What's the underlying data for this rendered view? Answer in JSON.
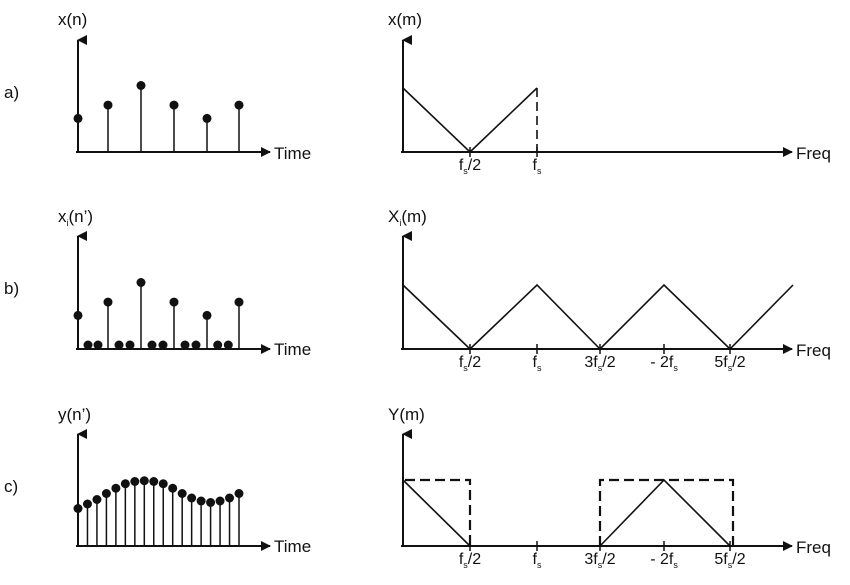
{
  "rows": [
    {
      "label": "a)",
      "time_title": "x(n)",
      "freq_title": "x(m)",
      "samples": [
        0.48,
        0.67,
        0.95,
        0.67,
        0.48,
        0.67
      ],
      "zero_samples": [],
      "freq_ticks": [
        {
          "main": "f",
          "sub": "s",
          "rest": "/2"
        },
        {
          "main": "f",
          "sub": "s",
          "rest": ""
        }
      ],
      "spectrum": "triangle ending in dashed vertical line at fs"
    },
    {
      "label": "b)",
      "time_title": "x",
      "time_title_sub": "i",
      "time_title_rest": "(n’)",
      "freq_title": "X",
      "freq_title_sub": "i",
      "freq_title_rest": "(m)",
      "samples": [
        0.48,
        0.67,
        0.95,
        0.67,
        0.48,
        0.67
      ],
      "zero_samples": "two zero-valued samples between each original sample",
      "freq_ticks": [
        {
          "main": "f",
          "sub": "s",
          "rest": "/2"
        },
        {
          "main": "f",
          "sub": "s",
          "rest": ""
        },
        {
          "main": "3f",
          "sub": "s",
          "rest": "/2"
        },
        {
          "main": "- 2f",
          "sub": "s",
          "rest": ""
        },
        {
          "main": "5f",
          "sub": "s",
          "rest": "/2"
        }
      ],
      "spectrum": "repeated spectral images"
    },
    {
      "label": "c)",
      "time_title": "y(n’)",
      "freq_title": "Y(m)",
      "samples": [
        0.5,
        0.56,
        0.62,
        0.7,
        0.77,
        0.83,
        0.86,
        0.87,
        0.86,
        0.83,
        0.77,
        0.7,
        0.64,
        0.6,
        0.58,
        0.6,
        0.64,
        0.7
      ],
      "freq_ticks": [
        {
          "main": "f",
          "sub": "s",
          "rest": "/2"
        },
        {
          "main": "f",
          "sub": "s",
          "rest": ""
        },
        {
          "main": "3f",
          "sub": "s",
          "rest": "/2"
        },
        {
          "main": "- 2f",
          "sub": "s",
          "rest": ""
        },
        {
          "main": "5f",
          "sub": "s",
          "rest": "/2"
        }
      ],
      "spectrum": "filtered spectrum with dashed filter responses"
    }
  ],
  "time_axis_label": "Time",
  "freq_axis_label": "Freq"
}
